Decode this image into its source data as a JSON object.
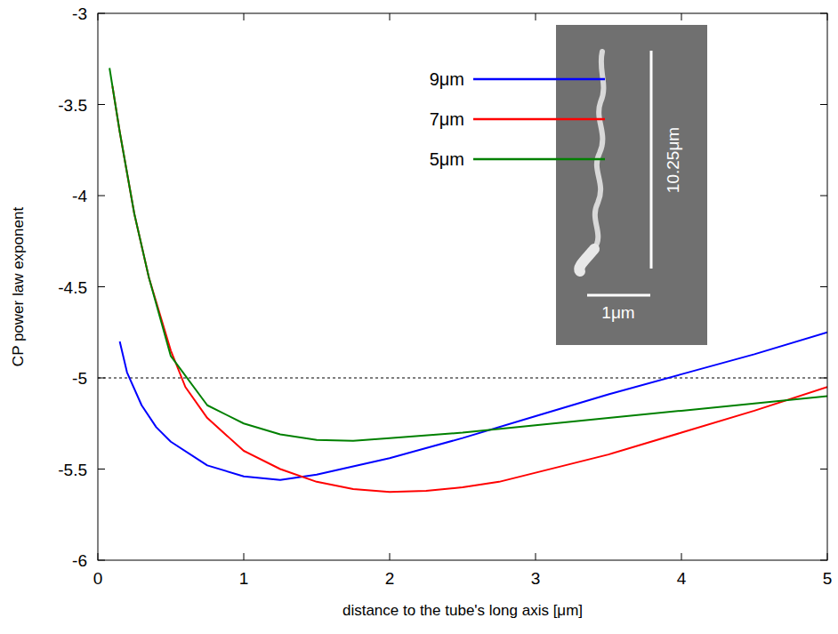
{
  "chart_data": {
    "type": "line",
    "x_label": "distance to the tube's long axis [μm]",
    "y_label": "CP power law exponent",
    "xlim": [
      0,
      5
    ],
    "xticks": [
      0,
      1,
      2,
      3,
      4,
      5
    ],
    "ylim": [
      -6,
      -3
    ],
    "yticks": [
      -6,
      -5.5,
      -5,
      -4.5,
      -4,
      -3.5,
      -3
    ],
    "reference_lines": [
      -5
    ],
    "legend": "top-right",
    "annotations": [
      "10.25μm",
      "1μm"
    ],
    "series": [
      {
        "name": "9μm",
        "color": "#0000ff",
        "x": [
          0.15,
          0.2,
          0.3,
          0.4,
          0.5,
          0.75,
          1.0,
          1.25,
          1.5,
          2.0,
          2.5,
          3.0,
          3.5,
          4.0,
          4.5,
          5.0
        ],
        "values": [
          -4.8,
          -4.97,
          -5.15,
          -5.27,
          -5.35,
          -5.48,
          -5.54,
          -5.56,
          -5.53,
          -5.44,
          -5.33,
          -5.21,
          -5.09,
          -4.98,
          -4.87,
          -4.75
        ]
      },
      {
        "name": "7μm",
        "color": "#ff0000",
        "x": [
          0.1,
          0.15,
          0.25,
          0.35,
          0.5,
          0.6,
          0.75,
          1.0,
          1.25,
          1.5,
          1.75,
          2.0,
          2.25,
          2.5,
          2.75,
          3.0,
          3.5,
          4.0,
          4.5,
          5.0
        ],
        "values": [
          -3.4,
          -3.65,
          -4.1,
          -4.45,
          -4.85,
          -5.05,
          -5.22,
          -5.4,
          -5.5,
          -5.57,
          -5.61,
          -5.625,
          -5.62,
          -5.6,
          -5.57,
          -5.52,
          -5.42,
          -5.3,
          -5.18,
          -5.05
        ]
      },
      {
        "name": "5μm",
        "color": "#008000",
        "x": [
          0.08,
          0.15,
          0.25,
          0.35,
          0.5,
          0.75,
          1.0,
          1.25,
          1.5,
          1.75,
          2.0,
          2.5,
          3.0,
          3.5,
          4.0,
          4.5,
          5.0
        ],
        "values": [
          -3.3,
          -3.65,
          -4.1,
          -4.45,
          -4.88,
          -5.15,
          -5.25,
          -5.31,
          -5.34,
          -5.345,
          -5.33,
          -5.3,
          -5.26,
          -5.22,
          -5.18,
          -5.14,
          -5.1
        ]
      }
    ]
  }
}
